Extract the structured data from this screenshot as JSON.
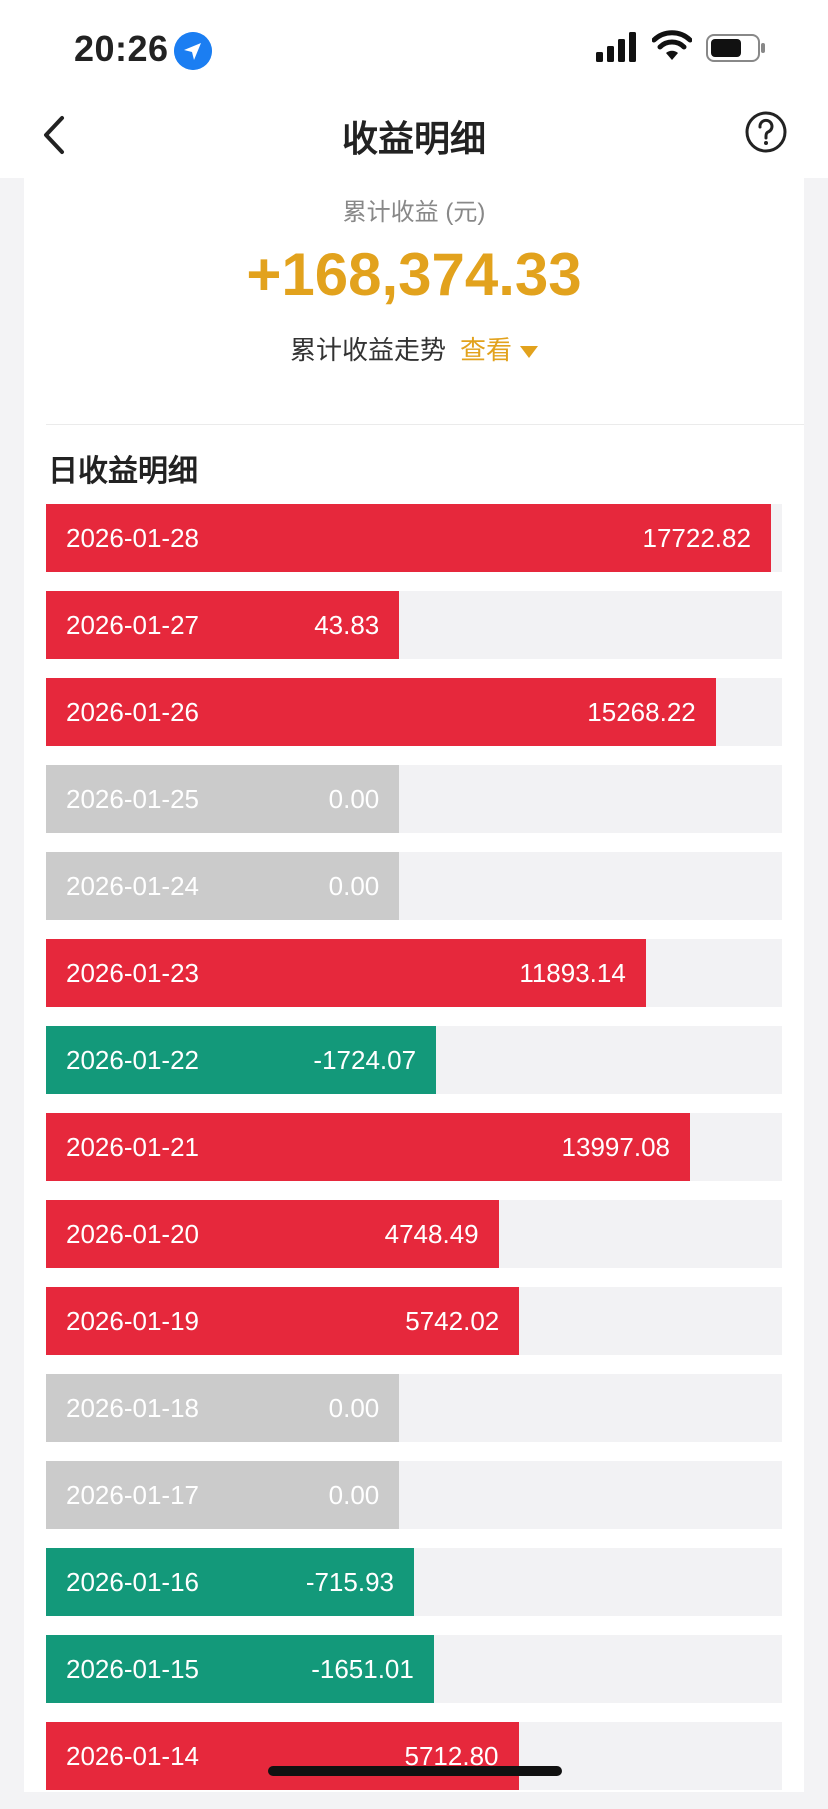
{
  "status": {
    "time": "20:26"
  },
  "nav": {
    "title": "收益明细"
  },
  "summary": {
    "label": "累计收益 (元)",
    "value": "+168,374.33",
    "trend_label": "累计收益走势",
    "trend_link": "查看"
  },
  "section_title": "日收益明细",
  "colors": {
    "positive": "#e6283c",
    "negative": "#13997a",
    "zero": "#cbcbcb",
    "accent": "#e2a21d"
  },
  "daily": [
    {
      "date": "2026-01-28",
      "value": "17722.82",
      "kind": "pos",
      "fill": 0.985
    },
    {
      "date": "2026-01-27",
      "value": "43.83",
      "kind": "pos",
      "fill": 0.48
    },
    {
      "date": "2026-01-26",
      "value": "15268.22",
      "kind": "pos",
      "fill": 0.91
    },
    {
      "date": "2026-01-25",
      "value": "0.00",
      "kind": "zero",
      "fill": 0.48
    },
    {
      "date": "2026-01-24",
      "value": "0.00",
      "kind": "zero",
      "fill": 0.48
    },
    {
      "date": "2026-01-23",
      "value": "11893.14",
      "kind": "pos",
      "fill": 0.815
    },
    {
      "date": "2026-01-22",
      "value": "-1724.07",
      "kind": "neg",
      "fill": 0.53
    },
    {
      "date": "2026-01-21",
      "value": "13997.08",
      "kind": "pos",
      "fill": 0.875
    },
    {
      "date": "2026-01-20",
      "value": "4748.49",
      "kind": "pos",
      "fill": 0.615
    },
    {
      "date": "2026-01-19",
      "value": "5742.02",
      "kind": "pos",
      "fill": 0.643
    },
    {
      "date": "2026-01-18",
      "value": "0.00",
      "kind": "zero",
      "fill": 0.48
    },
    {
      "date": "2026-01-17",
      "value": "0.00",
      "kind": "zero",
      "fill": 0.48
    },
    {
      "date": "2026-01-16",
      "value": "-715.93",
      "kind": "neg",
      "fill": 0.5
    },
    {
      "date": "2026-01-15",
      "value": "-1651.01",
      "kind": "neg",
      "fill": 0.527
    },
    {
      "date": "2026-01-14",
      "value": "5712.80",
      "kind": "pos",
      "fill": 0.642
    }
  ]
}
